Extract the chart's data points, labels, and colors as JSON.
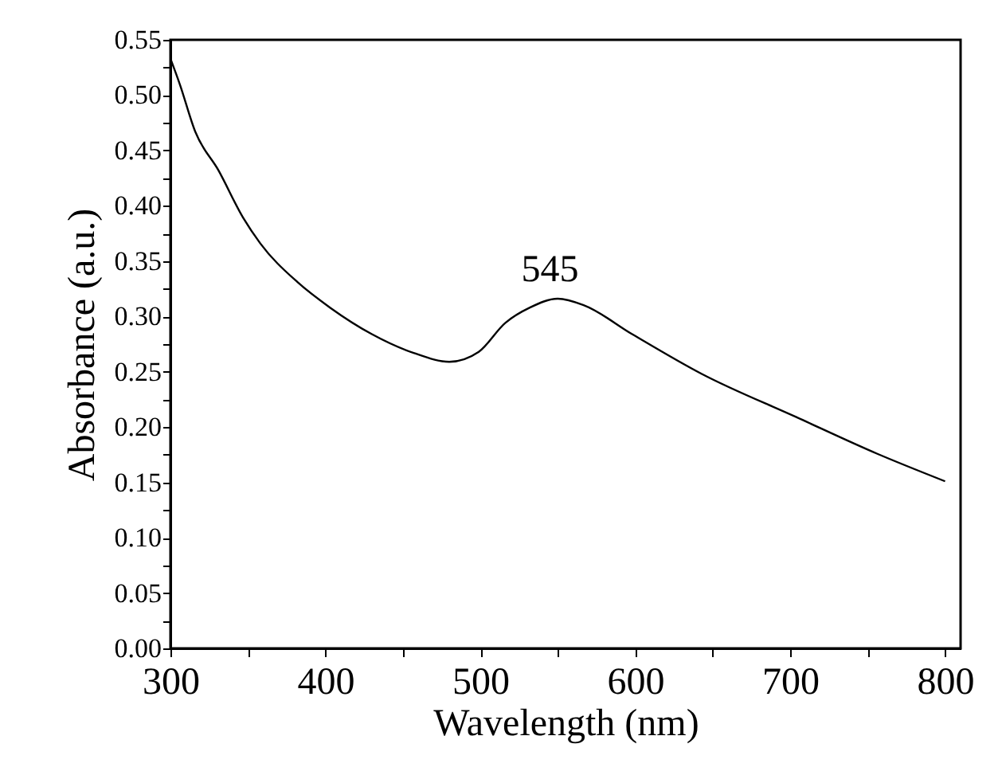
{
  "chart_data": {
    "type": "line",
    "xlabel": "Wavelength (nm)",
    "ylabel": "Absorbance (a.u.)",
    "x": [
      300,
      306,
      316,
      331,
      347,
      358,
      382,
      403,
      430,
      457,
      480,
      499,
      516,
      532,
      550,
      567,
      598,
      643,
      704,
      756,
      800
    ],
    "series": [
      {
        "color": "#000000",
        "values": [
          0.533,
          0.51,
          0.467,
          0.432,
          0.389,
          0.366,
          0.331,
          0.308,
          0.284,
          0.267,
          0.259,
          0.268,
          0.294,
          0.308,
          0.316,
          0.31,
          0.284,
          0.248,
          0.209,
          0.176,
          0.151
        ]
      }
    ],
    "annotations": [
      {
        "text": "545",
        "x": 545,
        "y": 0.316
      }
    ],
    "xlim": [
      300,
      810
    ],
    "xticks": [
      300,
      {
        "value": 350,
        "label": null
      },
      400,
      {
        "value": 450,
        "label": null
      },
      500,
      {
        "value": 550,
        "label": null
      },
      600,
      {
        "value": 650,
        "label": null
      },
      700,
      {
        "value": 750,
        "label": null
      },
      800
    ],
    "ylim": [
      0,
      0.55
    ],
    "yticks": [
      {
        "value": 0,
        "label": "0.00"
      },
      {
        "value": 0.025,
        "label": null
      },
      {
        "value": 0.05,
        "label": "0.05"
      },
      {
        "value": 0.075,
        "label": null
      },
      {
        "value": 0.1,
        "label": "0.10"
      },
      {
        "value": 0.125,
        "label": null
      },
      {
        "value": 0.15,
        "label": "0.15"
      },
      {
        "value": 0.175,
        "label": null
      },
      {
        "value": 0.2,
        "label": "0.20"
      },
      {
        "value": 0.225,
        "label": null
      },
      {
        "value": 0.25,
        "label": "0.25"
      },
      {
        "value": 0.275,
        "label": null
      },
      {
        "value": 0.3,
        "label": "0.30"
      },
      {
        "value": 0.325,
        "label": null
      },
      {
        "value": 0.35,
        "label": "0.35"
      },
      {
        "value": 0.375,
        "label": null
      },
      {
        "value": 0.4,
        "label": "0.40"
      },
      {
        "value": 0.425,
        "label": null
      },
      {
        "value": 0.45,
        "label": "0.45"
      },
      {
        "value": 0.475,
        "label": null
      },
      {
        "value": 0.5,
        "label": "0.50"
      },
      {
        "value": 0.525,
        "label": null
      },
      {
        "value": 0.55,
        "label": "0.55"
      }
    ],
    "grid": false,
    "marker": "none",
    "line_style": "solid"
  }
}
